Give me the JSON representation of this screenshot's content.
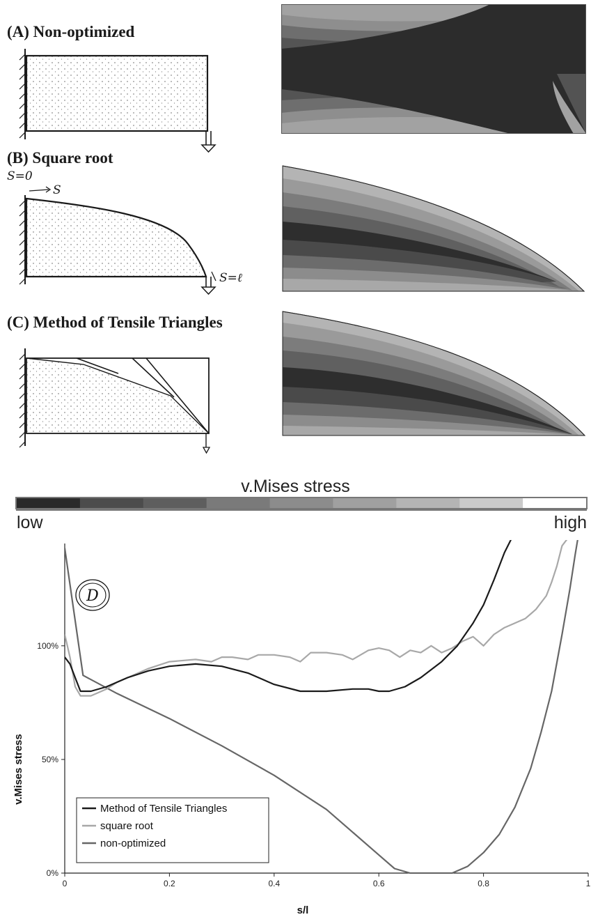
{
  "panels": {
    "a_title": "(A) Non-optimized",
    "b_title": "(B) Square root",
    "c_title": "(C) Method of Tensile Triangles",
    "b_s0": "S=0",
    "b_s": "S",
    "b_sl": "S=ℓ"
  },
  "scale": {
    "title": "v.Mises stress",
    "low": "low",
    "high": "high",
    "colors": [
      "#2a2a2a",
      "#4c4c4c",
      "#5e5e5e",
      "#7a7a7a",
      "#8c8c8c",
      "#a0a0a0",
      "#b4b4b4",
      "#cacaca",
      "#ffffff"
    ]
  },
  "chart_data": {
    "type": "line",
    "panel_label": "D",
    "xlabel": "s/l",
    "ylabel": "v.Mises stress",
    "xlim": [
      0,
      1
    ],
    "ylim": [
      0,
      1.45
    ],
    "xticks": [
      "0",
      "0.2",
      "0.4",
      "0.6",
      "0.8",
      "1"
    ],
    "yticks": [
      "0%",
      "50%",
      "100%"
    ],
    "grid": false,
    "legend_position": "bottom-left",
    "series": [
      {
        "name": "Method of Tensile Triangles",
        "color": "#1a1a1a",
        "x": [
          0,
          0.01,
          0.02,
          0.03,
          0.05,
          0.08,
          0.12,
          0.16,
          0.2,
          0.25,
          0.3,
          0.35,
          0.4,
          0.45,
          0.5,
          0.55,
          0.58,
          0.6,
          0.62,
          0.65,
          0.68,
          0.72,
          0.75,
          0.78,
          0.8,
          0.82,
          0.84,
          0.853
        ],
        "y": [
          0.95,
          0.92,
          0.86,
          0.8,
          0.8,
          0.82,
          0.86,
          0.89,
          0.91,
          0.92,
          0.91,
          0.88,
          0.83,
          0.8,
          0.8,
          0.81,
          0.81,
          0.8,
          0.8,
          0.82,
          0.86,
          0.93,
          1.0,
          1.1,
          1.18,
          1.29,
          1.41,
          1.47
        ]
      },
      {
        "name": "square root",
        "color": "#a8a8a8",
        "x": [
          0,
          0.01,
          0.02,
          0.03,
          0.05,
          0.08,
          0.1,
          0.13,
          0.16,
          0.2,
          0.25,
          0.28,
          0.3,
          0.32,
          0.35,
          0.37,
          0.4,
          0.43,
          0.45,
          0.47,
          0.5,
          0.53,
          0.55,
          0.58,
          0.6,
          0.62,
          0.64,
          0.66,
          0.68,
          0.7,
          0.72,
          0.74,
          0.76,
          0.78,
          0.8,
          0.82,
          0.84,
          0.86,
          0.88,
          0.9,
          0.92,
          0.93,
          0.94,
          0.95,
          0.96
        ],
        "y": [
          1.05,
          0.95,
          0.82,
          0.78,
          0.78,
          0.81,
          0.84,
          0.87,
          0.9,
          0.93,
          0.94,
          0.93,
          0.95,
          0.95,
          0.94,
          0.96,
          0.96,
          0.95,
          0.93,
          0.97,
          0.97,
          0.96,
          0.94,
          0.98,
          0.99,
          0.98,
          0.95,
          0.98,
          0.97,
          1.0,
          0.97,
          0.99,
          1.02,
          1.04,
          1.0,
          1.05,
          1.08,
          1.1,
          1.12,
          1.16,
          1.22,
          1.28,
          1.35,
          1.44,
          1.47
        ]
      },
      {
        "name": "non-optimized",
        "color": "#666666",
        "x": [
          0,
          0.035,
          0.1,
          0.2,
          0.3,
          0.4,
          0.5,
          0.55,
          0.6,
          0.63,
          0.66,
          0.7,
          0.74,
          0.77,
          0.8,
          0.83,
          0.86,
          0.89,
          0.91,
          0.93,
          0.95,
          0.965,
          0.975,
          0.98
        ],
        "y": [
          1.43,
          0.87,
          0.79,
          0.68,
          0.56,
          0.43,
          0.28,
          0.18,
          0.08,
          0.02,
          0.0,
          0.0,
          0.0,
          0.03,
          0.09,
          0.17,
          0.29,
          0.46,
          0.62,
          0.8,
          1.05,
          1.25,
          1.4,
          1.47
        ]
      }
    ]
  }
}
